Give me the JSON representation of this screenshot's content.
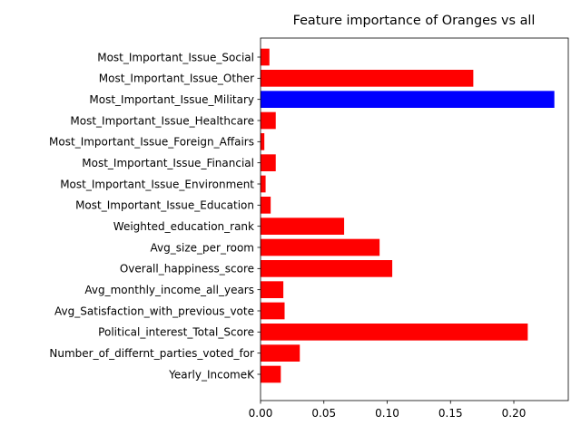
{
  "chart_data": {
    "type": "bar",
    "orientation": "horizontal",
    "title": "Feature importance of Oranges vs all",
    "xlabel": "",
    "ylabel": "",
    "xlim": [
      0,
      0.243
    ],
    "xticks": [
      0.0,
      0.05,
      0.1,
      0.15,
      0.2
    ],
    "xtick_labels": [
      "0.00",
      "0.05",
      "0.10",
      "0.15",
      "0.20"
    ],
    "grid": false,
    "legend": "none",
    "categories": [
      "Yearly_IncomeK",
      "Number_of_differnt_parties_voted_for",
      "Political_interest_Total_Score",
      "Avg_Satisfaction_with_previous_vote",
      "Avg_monthly_income_all_years",
      "Overall_happiness_score",
      "Avg_size_per_room",
      "Weighted_education_rank",
      "Most_Important_Issue_Education",
      "Most_Important_Issue_Environment",
      "Most_Important_Issue_Financial",
      "Most_Important_Issue_Foreign_Affairs",
      "Most_Important_Issue_Healthcare",
      "Most_Important_Issue_Military",
      "Most_Important_Issue_Other",
      "Most_Important_Issue_Social"
    ],
    "values": [
      0.016,
      0.031,
      0.211,
      0.019,
      0.018,
      0.104,
      0.094,
      0.066,
      0.008,
      0.004,
      0.012,
      0.003,
      0.012,
      0.232,
      0.168,
      0.007
    ],
    "colors": [
      "#ff0000",
      "#ff0000",
      "#ff0000",
      "#ff0000",
      "#ff0000",
      "#ff0000",
      "#ff0000",
      "#ff0000",
      "#ff0000",
      "#ff0000",
      "#ff0000",
      "#ff0000",
      "#ff0000",
      "#0000ff",
      "#ff0000",
      "#ff0000"
    ]
  }
}
